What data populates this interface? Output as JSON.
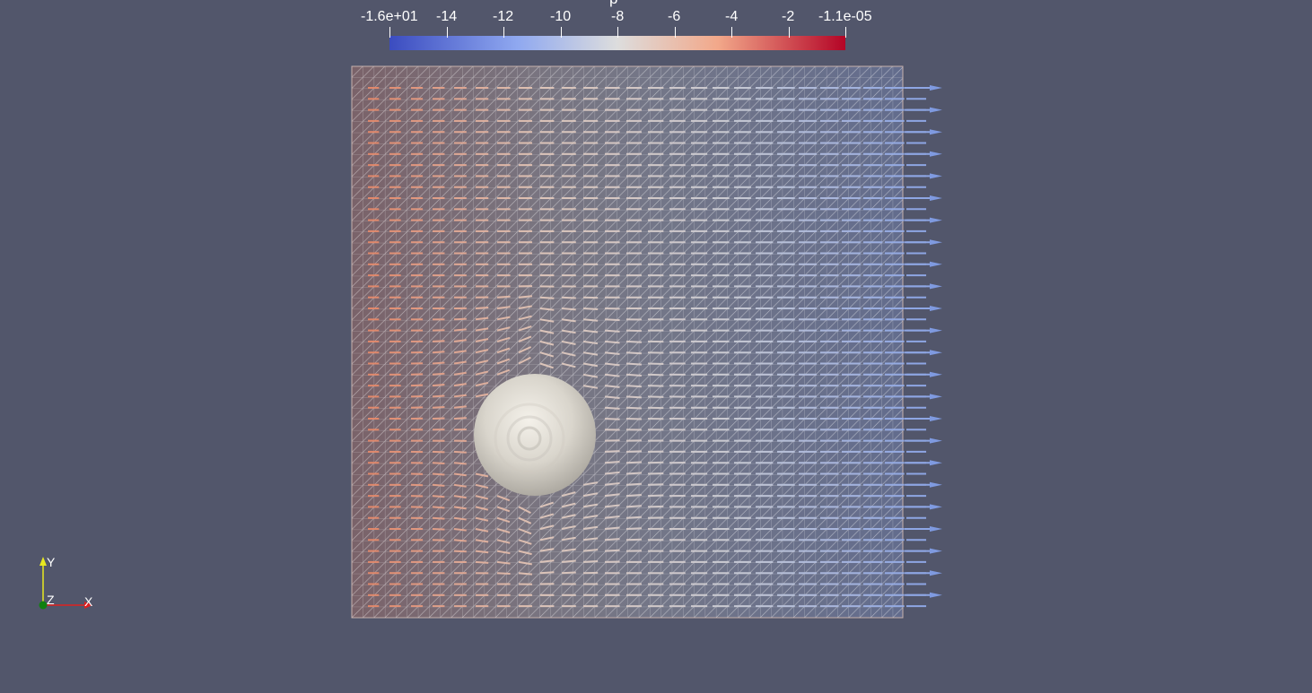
{
  "colorbar": {
    "title": "p",
    "ticks": [
      "-1.6e+01",
      "-14",
      "-12",
      "-10",
      "-8",
      "-6",
      "-4",
      "-2",
      "-1.1e-05"
    ],
    "tick_values": [
      -16,
      -14,
      -12,
      -10,
      -8,
      -6,
      -4,
      -2,
      0
    ],
    "colormap": "coolwarm",
    "colors": {
      "low": "#3b4cc0",
      "mid": "#dddddd",
      "high": "#b40426"
    }
  },
  "axes": {
    "x_label": "X",
    "y_label": "Y",
    "z_label": "Z",
    "x_color": "#e02020",
    "y_color": "#e8e820",
    "z_color": "#108010"
  },
  "scene": {
    "background": "#52566b",
    "mesh_color": "#ffffff",
    "sphere_color": "#e8e4dc"
  }
}
